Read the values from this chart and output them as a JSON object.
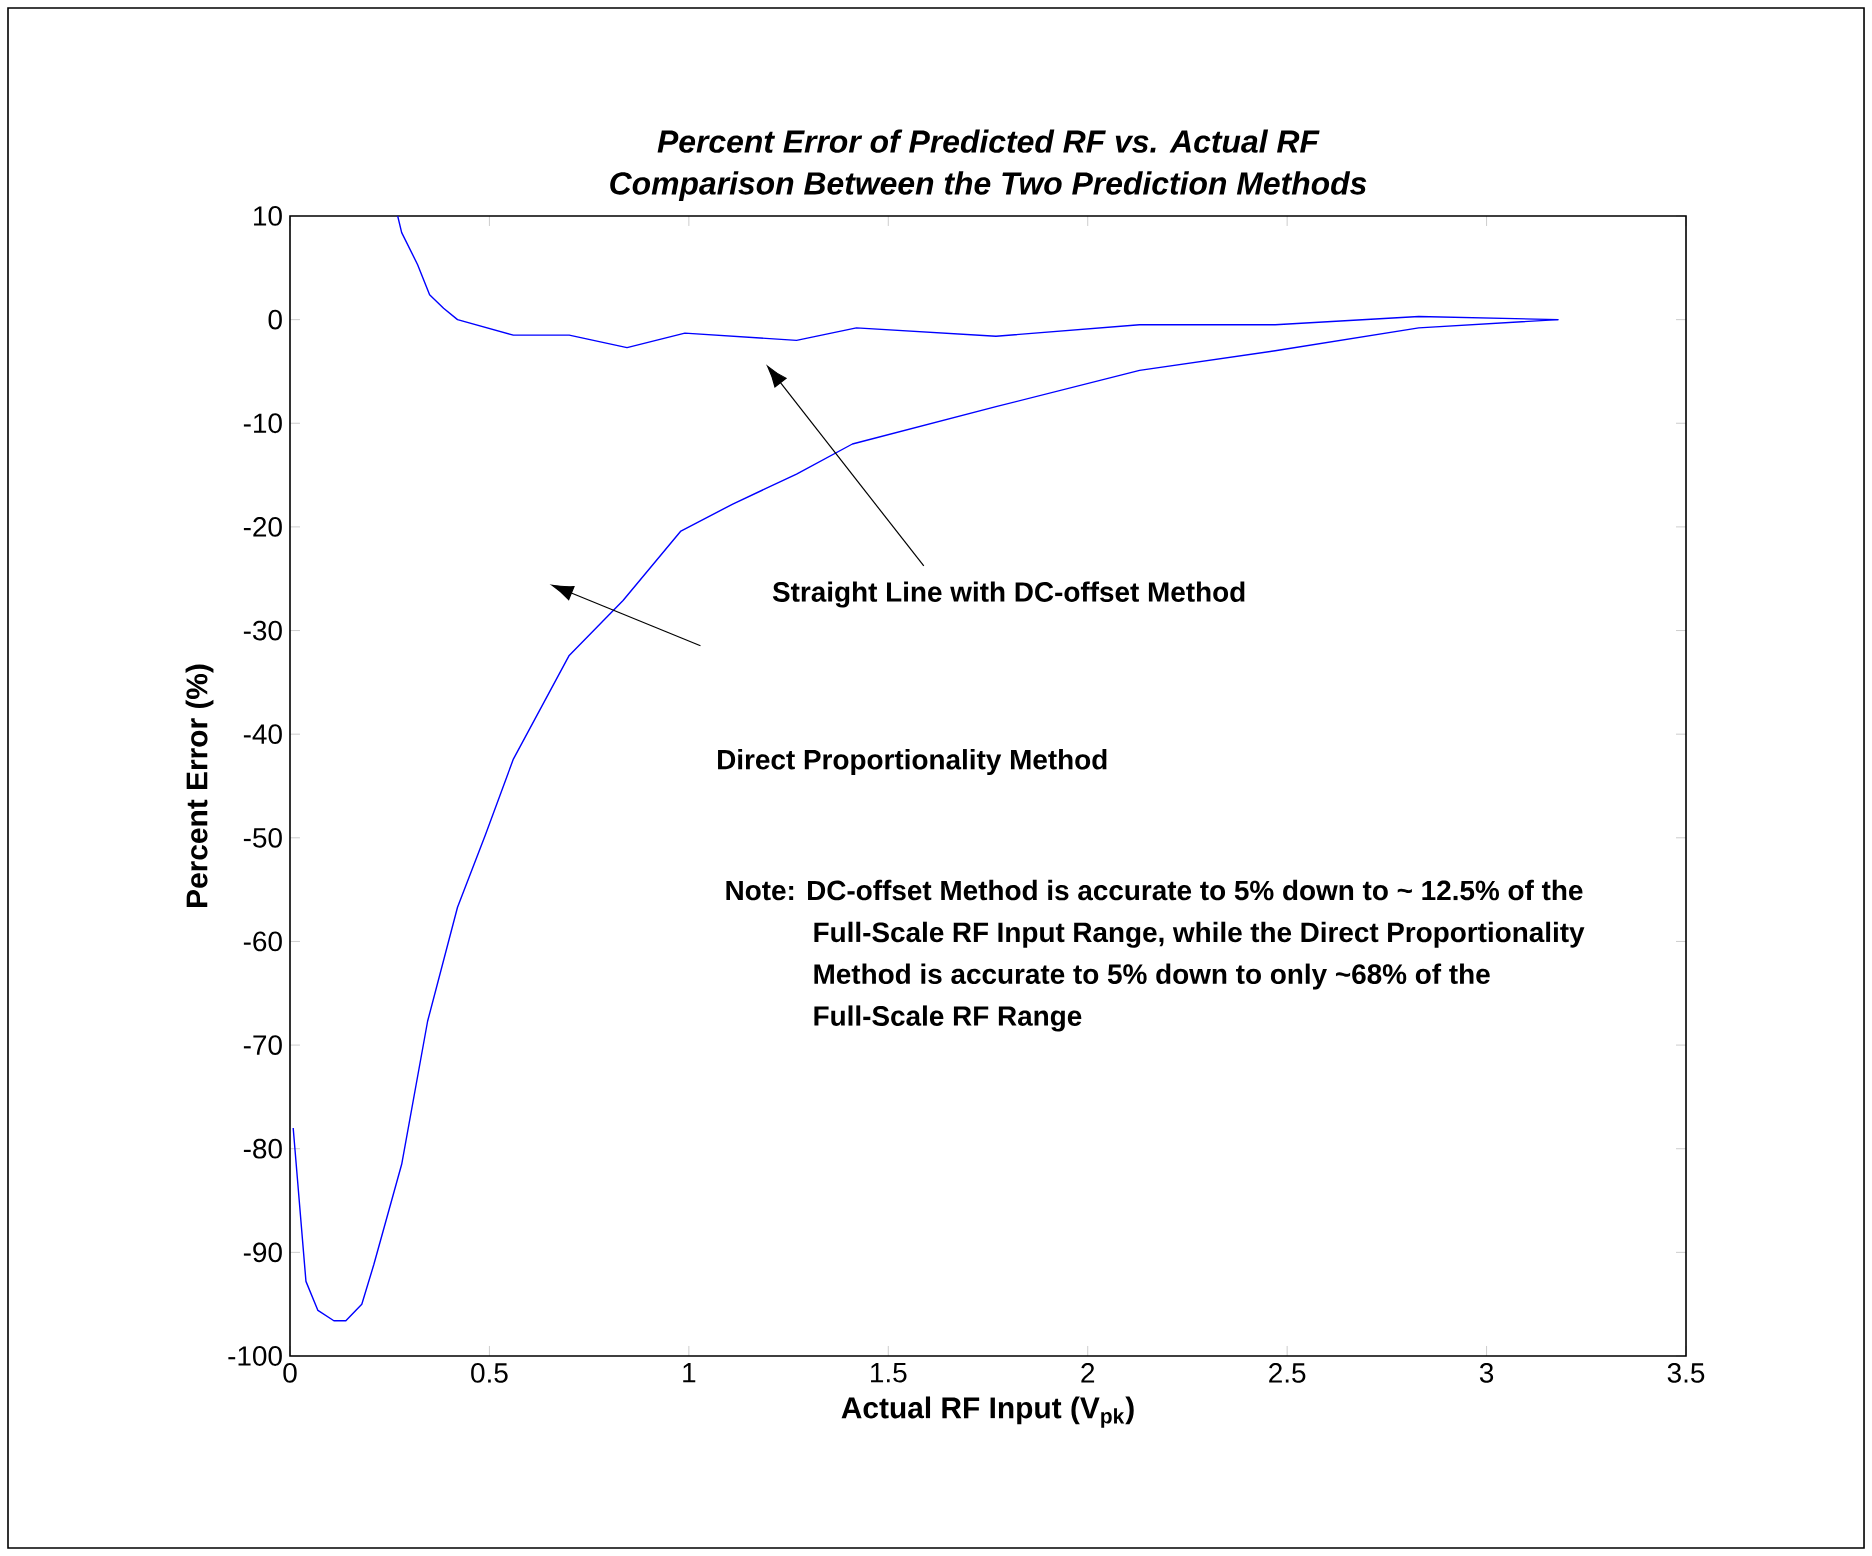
{
  "chart_data": {
    "type": "line",
    "title": "Percent Error of Predicted RF vs. Actual RF",
    "subtitle": "Comparison Between the Two Prediction Methods",
    "xlabel": "Actual RF Input (V$_{pk}$)",
    "ylabel": "Percent Error (%)",
    "xlim": [
      0,
      3.5
    ],
    "ylim": [
      -100,
      10
    ],
    "xticks": [
      0,
      0.5,
      1,
      1.5,
      2,
      2.5,
      3,
      3.5
    ],
    "yticks": [
      -100,
      -90,
      -80,
      -70,
      -60,
      -50,
      -40,
      -30,
      -20,
      -10,
      0,
      10
    ],
    "marker": "none",
    "line_style": "solid",
    "series": [
      {
        "color": "#0000ff",
        "x": [
          0.27,
          0.28,
          0.32,
          0.35,
          0.385,
          0.42,
          0.56,
          0.7,
          0.845,
          0.99,
          1.27,
          1.42,
          1.77,
          2.13,
          2.47,
          2.83,
          3.18
        ],
        "values": [
          10,
          8.4,
          5.3,
          2.4,
          1.1,
          0,
          -1.5,
          -1.5,
          -2.7,
          -1.3,
          -2.0,
          -0.8,
          -1.6,
          -0.5,
          -0.5,
          0.3,
          0
        ]
      },
      {
        "color": "#0000ff",
        "x": [
          0.008,
          0.04,
          0.07,
          0.11,
          0.14,
          0.18,
          0.21,
          0.28,
          0.345,
          0.42,
          0.49,
          0.56,
          0.7,
          0.835,
          0.98,
          1.11,
          1.27,
          1.41,
          1.77,
          2.13,
          2.47,
          2.83,
          3.18
        ],
        "values": [
          -78,
          -92.8,
          -95.6,
          -96.6,
          -96.6,
          -95,
          -91.2,
          -81.5,
          -67.7,
          -56.7,
          -49.7,
          -42.4,
          -32.4,
          -27.1,
          -20.4,
          -17.8,
          -14.9,
          -12,
          -8.4,
          -4.9,
          -3,
          -0.8,
          0
        ]
      }
    ],
    "annotations": [
      "Straight Line with DC-offset Method",
      "Direct Proportionality Method",
      "Note: DC-offset Method is accurate to 5% down to ~ 12.5% of the Full-Scale RF Input Range, while the Direct Proportionality Method is accurate to 5% down to only ~68% of the Full-Scale RF Range"
    ]
  }
}
